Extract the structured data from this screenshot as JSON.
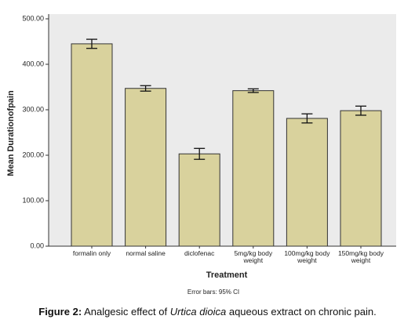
{
  "chart_data": {
    "type": "bar",
    "y_label": "Mean Durationofpain",
    "x_label": "Treatment",
    "footnote": "Error bars: 95% CI",
    "categories": [
      "formalin only",
      "normal saline",
      "diclofenac",
      "5mg/kg body weight",
      "100mg/kg body weight",
      "150mg/kg body weight"
    ],
    "values": [
      445,
      347,
      203,
      342,
      281,
      298
    ],
    "errors": [
      10,
      6,
      12,
      4,
      10,
      10
    ],
    "color": "#d9d29d",
    "ylim": [
      0,
      500
    ],
    "yticks": [
      {
        "value": 0,
        "label": "0.00"
      },
      {
        "value": 100,
        "label": "100.00"
      },
      {
        "value": 200,
        "label": "200.00"
      },
      {
        "value": 300,
        "label": "300.00"
      },
      {
        "value": 400,
        "label": "400.00"
      },
      {
        "value": 500,
        "label": "500.00"
      }
    ]
  },
  "caption": {
    "label": "Figure 2:",
    "before": "Analgesic effect of",
    "italic": "Urtica dioica",
    "after": "aqueous extract on chronic pain."
  }
}
